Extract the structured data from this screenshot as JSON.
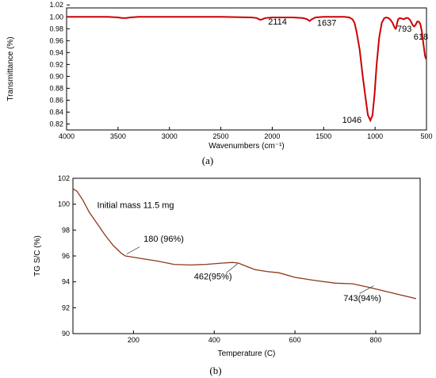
{
  "chart_data": [
    {
      "type": "line",
      "panel_label": "(a)",
      "xlabel": "Wavenumbers (cm⁻¹)",
      "ylabel": "Transmittance (%)",
      "xlim": [
        4000,
        500
      ],
      "ylim": [
        0.81,
        1.015
      ],
      "x_ticks": [
        4000,
        3500,
        3000,
        2500,
        2000,
        1500,
        1000,
        500
      ],
      "y_ticks": [
        "0.82",
        "0.84",
        "0.86",
        "0.88",
        "0.90",
        "0.92",
        "0.94",
        "0.96",
        "0.98",
        "1.00",
        "1.02"
      ],
      "line_color": "#cc0000",
      "series": [
        {
          "x": [
            4000,
            3600,
            3500,
            3460,
            3420,
            3380,
            3300,
            3000,
            2500,
            2200,
            2150,
            2130,
            2114,
            2095,
            2070,
            2000,
            1800,
            1700,
            1660,
            1637,
            1615,
            1580,
            1500,
            1300,
            1250,
            1220,
            1200,
            1180,
            1150,
            1120,
            1090,
            1070,
            1046,
            1025,
            1005,
            985,
            960,
            935,
            910,
            890,
            870,
            850,
            830,
            815,
            805,
            800,
            793,
            785,
            775,
            760,
            740,
            720,
            700,
            680,
            660,
            645,
            630,
            618,
            605,
            590,
            575,
            560,
            545,
            530,
            515,
            505
          ],
          "y": [
            1.0,
            1.0,
            0.999,
            0.998,
            0.998,
            0.999,
            1.0,
            1.0,
            1.0,
            0.999,
            0.998,
            0.996,
            0.995,
            0.996,
            0.998,
            0.999,
            0.999,
            0.998,
            0.996,
            0.993,
            0.996,
            0.999,
            1.0,
            1.0,
            0.999,
            0.996,
            0.99,
            0.975,
            0.945,
            0.9,
            0.86,
            0.835,
            0.826,
            0.835,
            0.87,
            0.92,
            0.965,
            0.99,
            0.998,
            0.999,
            0.998,
            0.995,
            0.99,
            0.984,
            0.981,
            0.98,
            0.982,
            0.99,
            0.996,
            0.998,
            0.997,
            0.996,
            0.998,
            0.998,
            0.995,
            0.99,
            0.985,
            0.984,
            0.987,
            0.992,
            0.992,
            0.988,
            0.975,
            0.955,
            0.935,
            0.929
          ]
        }
      ],
      "annotations": [
        {
          "text": "2114",
          "x": 2040,
          "y": 0.987
        },
        {
          "text": "1637",
          "x": 1565,
          "y": 0.985
        },
        {
          "text": "1046",
          "x": 1320,
          "y": 0.822
        },
        {
          "text": "793",
          "x": 785,
          "y": 0.975
        },
        {
          "text": "618",
          "x": 625,
          "y": 0.962
        }
      ]
    },
    {
      "type": "line",
      "panel_label": "(b)",
      "xlabel": "Temperature (C)",
      "ylabel": "TG S/C (%)",
      "xlim": [
        50,
        910
      ],
      "ylim": [
        90,
        102
      ],
      "x_ticks": [
        200,
        400,
        600,
        800
      ],
      "y_ticks": [
        90,
        92,
        94,
        96,
        98,
        100,
        102
      ],
      "line_color": "#8b3a1a",
      "series": [
        {
          "x": [
            50,
            60,
            75,
            90,
            110,
            130,
            150,
            170,
            180,
            200,
            230,
            260,
            300,
            340,
            380,
            420,
            445,
            460,
            480,
            500,
            530,
            560,
            600,
            650,
            700,
            743,
            780,
            820,
            860,
            900
          ],
          "y": [
            101.2,
            101.0,
            100.3,
            99.4,
            98.5,
            97.6,
            96.8,
            96.2,
            96.0,
            95.9,
            95.75,
            95.6,
            95.35,
            95.3,
            95.35,
            95.45,
            95.5,
            95.45,
            95.2,
            94.95,
            94.8,
            94.7,
            94.35,
            94.1,
            93.9,
            93.85,
            93.6,
            93.3,
            93.0,
            92.7
          ]
        }
      ],
      "annotations": [
        {
          "text": "Initial mass 11.5 mg",
          "x": 110,
          "y": 99.7
        },
        {
          "text": "180 (96%)",
          "x": 225,
          "y": 97.1
        },
        {
          "text": "462(95%)",
          "x": 350,
          "y": 94.2
        },
        {
          "text": "743(94%)",
          "x": 720,
          "y": 92.5
        }
      ],
      "pointers": [
        {
          "from_x": 215,
          "from_y": 96.7,
          "to_x": 183,
          "to_y": 96.15
        },
        {
          "from_x": 430,
          "from_y": 94.7,
          "to_x": 458,
          "to_y": 95.4
        },
        {
          "from_x": 760,
          "from_y": 93.1,
          "to_x": 795,
          "to_y": 93.7
        }
      ]
    }
  ]
}
